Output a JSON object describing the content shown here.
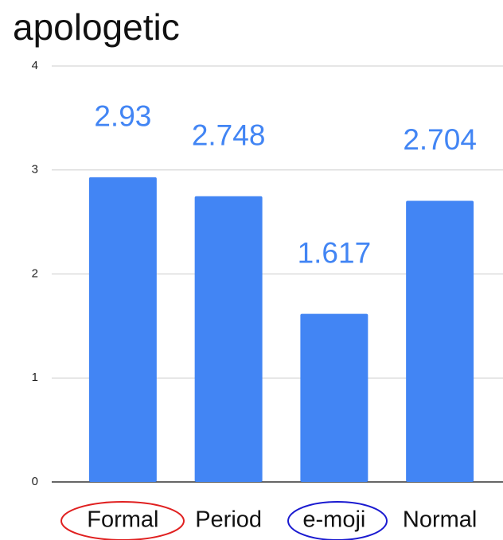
{
  "chart_data": {
    "type": "bar",
    "title": "apologetic",
    "categories": [
      "Formal",
      "Period",
      "e-moji",
      "Normal"
    ],
    "values": [
      2.93,
      2.748,
      1.617,
      2.704
    ],
    "color": "#4285f4",
    "ylim": [
      0,
      4
    ],
    "yticks": [
      0,
      1,
      2,
      3,
      4
    ],
    "grid": true
  }
}
